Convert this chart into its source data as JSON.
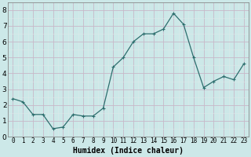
{
  "x": [
    0,
    1,
    2,
    3,
    4,
    5,
    6,
    7,
    8,
    9,
    10,
    11,
    12,
    13,
    14,
    15,
    16,
    17,
    18,
    19,
    20,
    21,
    22,
    23
  ],
  "y": [
    2.4,
    2.2,
    1.4,
    1.4,
    0.5,
    0.6,
    1.4,
    1.3,
    1.3,
    1.8,
    4.4,
    5.0,
    6.0,
    6.5,
    6.5,
    6.8,
    7.8,
    7.1,
    5.0,
    3.1,
    3.5,
    3.8,
    3.6,
    4.6
  ],
  "line_color": "#2d6e6e",
  "marker_color": "#2d6e6e",
  "bg_color": "#cce8e8",
  "grid_major_color": "#c8b8c8",
  "grid_minor_color": "#dde8e8",
  "xlabel": "Humidex (Indice chaleur)",
  "xlim": [
    -0.5,
    23.5
  ],
  "ylim": [
    0,
    8.5
  ],
  "yticks": [
    0,
    1,
    2,
    3,
    4,
    5,
    6,
    7,
    8
  ],
  "xtick_labels": [
    "0",
    "1",
    "2",
    "3",
    "4",
    "5",
    "6",
    "7",
    "8",
    "9",
    "10",
    "11",
    "12",
    "13",
    "14",
    "15",
    "16",
    "17",
    "18",
    "19",
    "20",
    "21",
    "22",
    "23"
  ],
  "font_size_xlabel": 7,
  "font_size_ticks": 5.5,
  "line_width": 0.9,
  "marker_size": 2.5
}
